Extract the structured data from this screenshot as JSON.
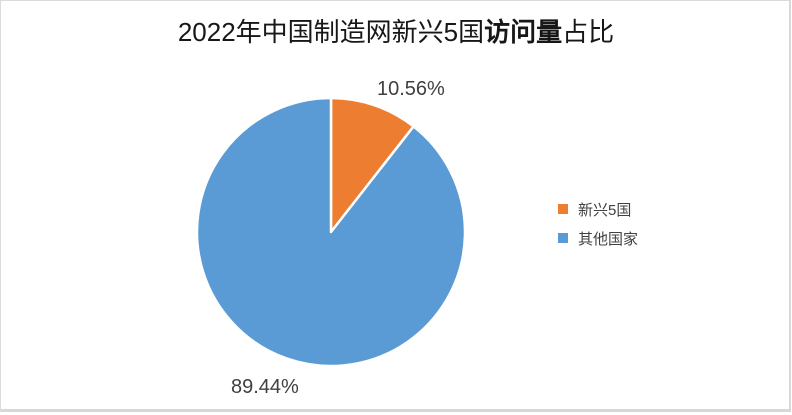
{
  "window": {
    "background": "#FFFFFF",
    "frame_border_color": "#DBDBDB"
  },
  "title": {
    "prefix": "2022年中国制造网新兴5国",
    "bold": "访问量",
    "suffix": "占比",
    "full": "2022年中国制造网新兴5国访问量占比"
  },
  "chart_data": {
    "type": "pie",
    "title": "2022年中国制造网新兴5国访问量占比",
    "categories": [
      "新兴5国",
      "其他国家"
    ],
    "values": [
      10.56,
      89.44
    ],
    "data_labels": [
      "10.56%",
      "89.44%"
    ],
    "colors": [
      "#ED7D31",
      "#5B9BD5"
    ],
    "label_color": "#404040",
    "start_angle": "12-oclock",
    "direction": "clockwise",
    "slice_border_color": "#FFFFFF",
    "legend_position": "right"
  },
  "legend": {
    "items": [
      {
        "label": "新兴5国",
        "color": "#ED7D31"
      },
      {
        "label": "其他国家",
        "color": "#5B9BD5"
      }
    ]
  }
}
